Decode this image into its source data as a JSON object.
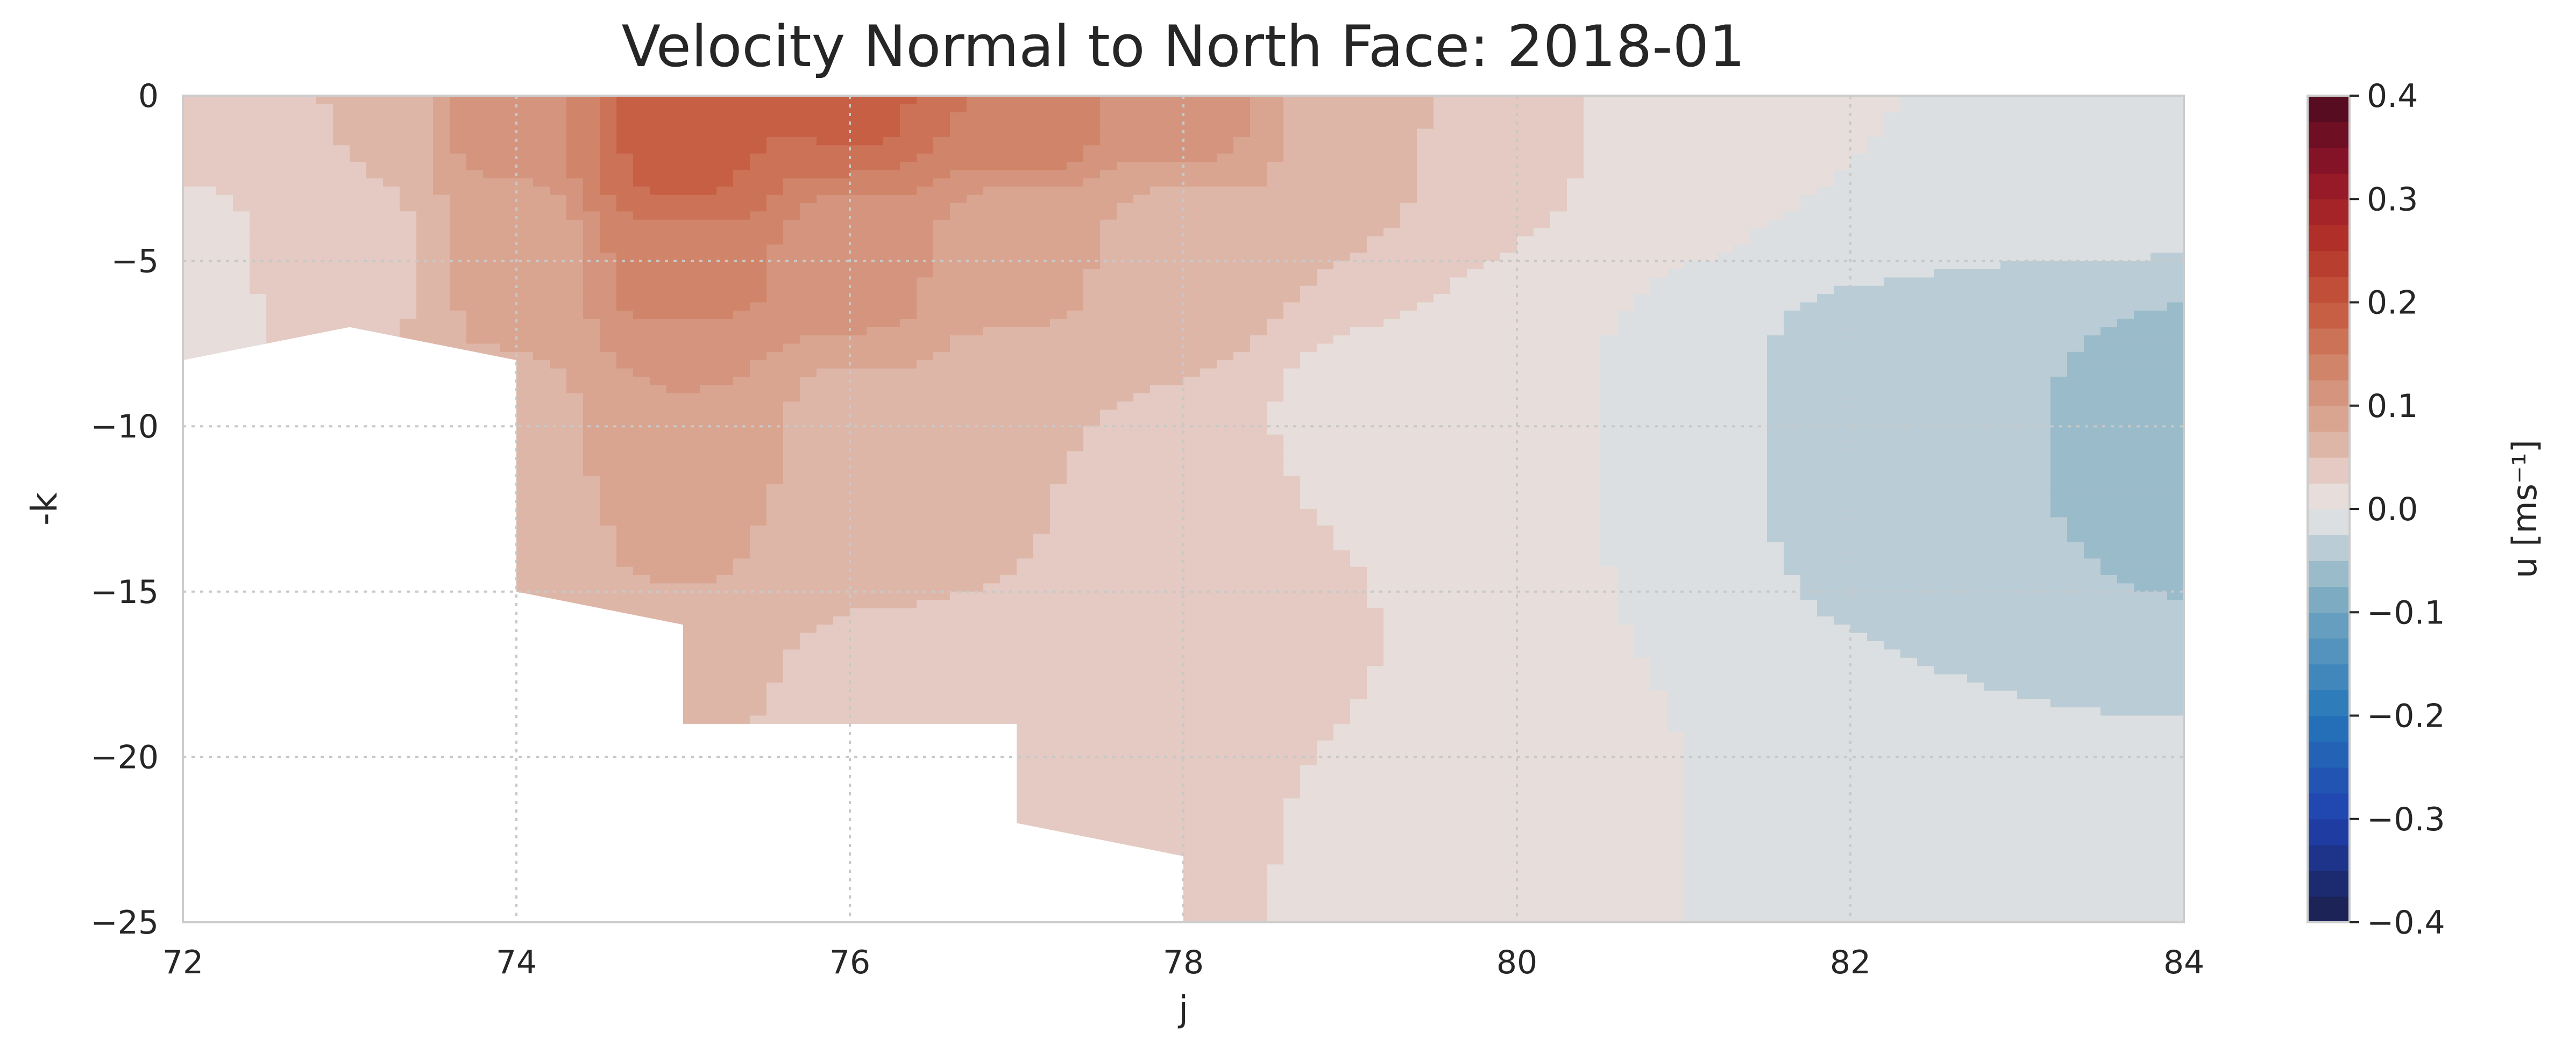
{
  "chart_data": {
    "type": "heatmap",
    "title": "Velocity Normal to North Face: 2018-01",
    "xlabel": "j",
    "ylabel": "-k",
    "xlim": [
      72,
      84
    ],
    "ylim": [
      -25,
      0
    ],
    "x_ticks": [
      "72",
      "74",
      "76",
      "78",
      "80",
      "82",
      "84"
    ],
    "y_ticks": [
      "0",
      "−5",
      "−10",
      "−15",
      "−20",
      "−25"
    ],
    "grid": true,
    "colorbar": {
      "label": "u [ms⁻¹]",
      "range": [
        -0.4,
        0.4
      ],
      "ticks": [
        "0.4",
        "0.3",
        "0.2",
        "0.1",
        "0.0",
        "−0.1",
        "−0.2",
        "−0.3",
        "−0.4"
      ],
      "step": 0.025,
      "colormap": "balance (blue-white-red)",
      "low_color": "#1a1f4a",
      "mid_color": "#e8e6e6",
      "high_color": "#4b0a1f"
    },
    "field": {
      "description": "contour-filled u velocity vs j (x) and -k (y)",
      "samples": [
        {
          "j": 72,
          "k": 0,
          "u": 0.03
        },
        {
          "j": 72,
          "k": -5,
          "u": 0.02
        },
        {
          "j": 72,
          "k": -7,
          "u": 0.02
        },
        {
          "j": 73,
          "k": 0,
          "u": 0.05
        },
        {
          "j": 73,
          "k": -5,
          "u": 0.04
        },
        {
          "j": 74,
          "k": 0,
          "u": 0.12
        },
        {
          "j": 74,
          "k": -5,
          "u": 0.08
        },
        {
          "j": 74,
          "k": -10,
          "u": 0.07
        },
        {
          "j": 74,
          "k": -14,
          "u": 0.06
        },
        {
          "j": 75,
          "k": 0,
          "u": 0.19
        },
        {
          "j": 75,
          "k": -2,
          "u": 0.18
        },
        {
          "j": 75,
          "k": -5,
          "u": 0.14
        },
        {
          "j": 75,
          "k": -9,
          "u": 0.1
        },
        {
          "j": 75,
          "k": -13,
          "u": 0.08
        },
        {
          "j": 75,
          "k": -17,
          "u": 0.06
        },
        {
          "j": 76,
          "k": 0,
          "u": 0.18
        },
        {
          "j": 76,
          "k": -5,
          "u": 0.11
        },
        {
          "j": 76,
          "k": -10,
          "u": 0.07
        },
        {
          "j": 76,
          "k": -15,
          "u": 0.05
        },
        {
          "j": 76,
          "k": -19,
          "u": 0.04
        },
        {
          "j": 77,
          "k": 0,
          "u": 0.15
        },
        {
          "j": 77,
          "k": -5,
          "u": 0.08
        },
        {
          "j": 77,
          "k": -10,
          "u": 0.05
        },
        {
          "j": 77,
          "k": -20,
          "u": 0.03
        },
        {
          "j": 78,
          "k": 0,
          "u": 0.11
        },
        {
          "j": 78,
          "k": -5,
          "u": 0.06
        },
        {
          "j": 78,
          "k": -12,
          "u": 0.04
        },
        {
          "j": 78,
          "k": -24,
          "u": 0.03
        },
        {
          "j": 79,
          "k": 0,
          "u": 0.06
        },
        {
          "j": 79,
          "k": -10,
          "u": 0.02
        },
        {
          "j": 79,
          "k": -25,
          "u": 0.02
        },
        {
          "j": 80,
          "k": 0,
          "u": 0.03
        },
        {
          "j": 80,
          "k": -10,
          "u": 0.01
        },
        {
          "j": 80,
          "k": -25,
          "u": 0.01
        },
        {
          "j": 81,
          "k": 0,
          "u": 0.01
        },
        {
          "j": 81,
          "k": -10,
          "u": -0.01
        },
        {
          "j": 81,
          "k": -25,
          "u": 0.0
        },
        {
          "j": 82,
          "k": 0,
          "u": 0.0
        },
        {
          "j": 82,
          "k": -10,
          "u": -0.04
        },
        {
          "j": 82,
          "k": -25,
          "u": -0.01
        },
        {
          "j": 83,
          "k": 0,
          "u": 0.0
        },
        {
          "j": 83,
          "k": -10,
          "u": -0.05
        },
        {
          "j": 83,
          "k": -25,
          "u": -0.02
        },
        {
          "j": 84,
          "k": 0,
          "u": 0.0
        },
        {
          "j": 84,
          "k": -10,
          "u": -0.06
        },
        {
          "j": 84,
          "k": -25,
          "u": -0.02
        }
      ],
      "land_mask_boundary": [
        {
          "j": 72,
          "k": -8
        },
        {
          "j": 73,
          "k": -7
        },
        {
          "j": 74,
          "k": -8
        },
        {
          "j": 74,
          "k": -15
        },
        {
          "j": 75,
          "k": -16
        },
        {
          "j": 75,
          "k": -19
        },
        {
          "j": 77,
          "k": -19
        },
        {
          "j": 77,
          "k": -22
        },
        {
          "j": 78,
          "k": -23
        },
        {
          "j": 78,
          "k": -25
        }
      ]
    }
  }
}
